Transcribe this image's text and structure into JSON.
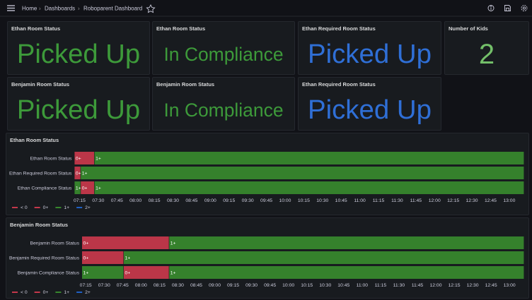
{
  "breadcrumb": [
    "Home",
    "Dashboards",
    "Roboparent Dashboard"
  ],
  "stat_panels": [
    {
      "title": "Ethan Room Status",
      "value": "Picked Up",
      "color": "#3d9a3a"
    },
    {
      "title": "Ethan Room Status",
      "value": "In Compliance",
      "color": "#3d9a3a"
    },
    {
      "title": "Ethan Required Room Status",
      "value": "Picked Up",
      "color": "#2f6fd6"
    },
    {
      "title": "Number of Kids",
      "value": 2,
      "color": "#73bf69"
    },
    {
      "title": "Benjamin Room Status",
      "value": "Picked Up",
      "color": "#3d9a3a"
    },
    {
      "title": "Benjamin Room Status",
      "value": "In Compliance",
      "color": "#3d9a3a"
    },
    {
      "title": "Ethan Required Room Status",
      "value": "Picked Up",
      "color": "#2f6fd6"
    }
  ],
  "timelines": [
    {
      "title": "Ethan Room Status",
      "range": [
        "07:11",
        "13:12"
      ],
      "ticks": [
        "07:15",
        "07:30",
        "07:45",
        "08:00",
        "08:15",
        "08:30",
        "08:45",
        "09:00",
        "09:15",
        "09:30",
        "09:45",
        "10:00",
        "10:15",
        "10:30",
        "10:45",
        "11:00",
        "11:15",
        "11:30",
        "11:45",
        "12:00",
        "12:15",
        "12:30",
        "12:45",
        "13:00"
      ],
      "rows": [
        {
          "name": "Ethan Room Status",
          "segments": [
            {
              "label": "0+",
              "start": "07:11",
              "end": "07:27"
            },
            {
              "label": "1+",
              "start": "07:27",
              "end": "13:12"
            }
          ]
        },
        {
          "name": "Ethan Required Room Status",
          "segments": [
            {
              "label": "0+",
              "start": "07:11",
              "end": "07:16"
            },
            {
              "label": "1+",
              "start": "07:16",
              "end": "13:12"
            }
          ]
        },
        {
          "name": "Ethan Compliance Status",
          "segments": [
            {
              "label": "1+",
              "start": "07:11",
              "end": "07:16"
            },
            {
              "label": "0+",
              "start": "07:16",
              "end": "07:27"
            },
            {
              "label": "1+",
              "start": "07:27",
              "end": "13:12"
            }
          ]
        }
      ],
      "legend": [
        {
          "label": "< 0",
          "color": "#c4384b"
        },
        {
          "label": "0+",
          "color": "#c4384b"
        },
        {
          "label": "1+",
          "color": "#37872d"
        },
        {
          "label": "2+",
          "color": "#1f60c4"
        }
      ]
    },
    {
      "title": "Benjamin Room Status",
      "range": [
        "07:12",
        "13:12"
      ],
      "ticks": [
        "07:15",
        "07:30",
        "07:45",
        "08:00",
        "08:15",
        "08:30",
        "08:45",
        "09:00",
        "09:15",
        "09:30",
        "09:45",
        "10:00",
        "10:15",
        "10:30",
        "10:45",
        "11:00",
        "11:15",
        "11:30",
        "11:45",
        "12:00",
        "12:15",
        "12:30",
        "12:45",
        "13:00"
      ],
      "rows": [
        {
          "name": "Benjamin Room Status",
          "segments": [
            {
              "label": "0+",
              "start": "07:12",
              "end": "08:23"
            },
            {
              "label": "1+",
              "start": "08:23",
              "end": "13:12"
            }
          ]
        },
        {
          "name": "Benjamin Required Room Status",
          "segments": [
            {
              "label": "0+",
              "start": "07:12",
              "end": "07:46"
            },
            {
              "label": "1+",
              "start": "07:46",
              "end": "13:12"
            }
          ]
        },
        {
          "name": "Benjamin Compliance Status",
          "segments": [
            {
              "label": "1+",
              "start": "07:12",
              "end": "07:46"
            },
            {
              "label": "0+",
              "start": "07:46",
              "end": "08:23"
            },
            {
              "label": "1+",
              "start": "08:23",
              "end": "13:12"
            }
          ]
        }
      ],
      "legend": [
        {
          "label": "< 0",
          "color": "#c4384b"
        },
        {
          "label": "0+",
          "color": "#c4384b"
        },
        {
          "label": "1+",
          "color": "#37872d"
        },
        {
          "label": "2+",
          "color": "#1f60c4"
        }
      ]
    }
  ]
}
